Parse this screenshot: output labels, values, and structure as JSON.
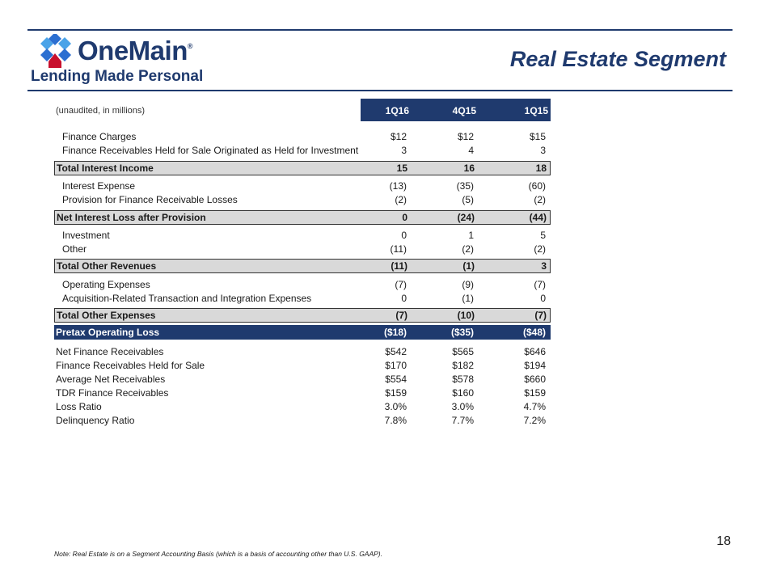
{
  "brand": {
    "name": "OneMain",
    "tagline": "Lending Made Personal",
    "colors": {
      "navy": "#1f3a6e",
      "blue": "#2c6fd1",
      "light_blue": "#4aa3e8",
      "red": "#c8102e",
      "gray": "#d9d9d9"
    }
  },
  "page_title": "Real Estate Segment",
  "table": {
    "unit_label": "(unaudited, in millions)",
    "columns": [
      "1Q16",
      "4Q15",
      "1Q15"
    ],
    "rows": [
      {
        "label": "Finance Charges",
        "values": [
          "$12",
          "$12",
          "$15"
        ]
      },
      {
        "label": "Finance Receivables Held for Sale Originated as Held for Investment",
        "values": [
          "3",
          "4",
          "3"
        ]
      },
      {
        "label": "Total Interest Income",
        "values": [
          "15",
          "16",
          "18"
        ]
      },
      {
        "label": "Interest Expense",
        "values": [
          "(13)",
          "(35)",
          "(60)"
        ]
      },
      {
        "label": "Provision for Finance Receivable Losses",
        "values": [
          "(2)",
          "(5)",
          "(2)"
        ]
      },
      {
        "label": "Net Interest Loss after Provision",
        "values": [
          "0",
          "(24)",
          "(44)"
        ]
      },
      {
        "label": "Investment",
        "values": [
          "0",
          "1",
          "5"
        ]
      },
      {
        "label": "Other",
        "values": [
          "(11)",
          "(2)",
          "(2)"
        ]
      },
      {
        "label": "Total Other Revenues",
        "values": [
          "(11)",
          "(1)",
          "3"
        ]
      },
      {
        "label": "Operating Expenses",
        "values": [
          "(7)",
          "(9)",
          "(7)"
        ]
      },
      {
        "label": "Acquisition-Related Transaction and Integration Expenses",
        "values": [
          "0",
          "(1)",
          "0"
        ]
      },
      {
        "label": "Total Other Expenses",
        "values": [
          "(7)",
          "(10)",
          "(7)"
        ]
      },
      {
        "label": "Pretax Operating Loss",
        "values": [
          "($18)",
          "($35)",
          "($48)"
        ]
      },
      {
        "label": "Net Finance Receivables",
        "values": [
          "$542",
          "$565",
          "$646"
        ]
      },
      {
        "label": "Finance Receivables Held for Sale",
        "values": [
          "$170",
          "$182",
          "$194"
        ]
      },
      {
        "label": "Average Net Receivables",
        "values": [
          "$554",
          "$578",
          "$660"
        ]
      },
      {
        "label": "TDR Finance Receivables",
        "values": [
          "$159",
          "$160",
          "$159"
        ]
      },
      {
        "label": "Loss Ratio",
        "values": [
          "3.0%",
          "3.0%",
          "4.7%"
        ]
      },
      {
        "label": "Delinquency Ratio",
        "values": [
          "7.8%",
          "7.7%",
          "7.2%"
        ]
      }
    ]
  },
  "note": "Note: Real Estate is on a Segment Accounting Basis (which is a basis of accounting other than U.S. GAAP).",
  "page_number": "18",
  "registered_mark": "®"
}
